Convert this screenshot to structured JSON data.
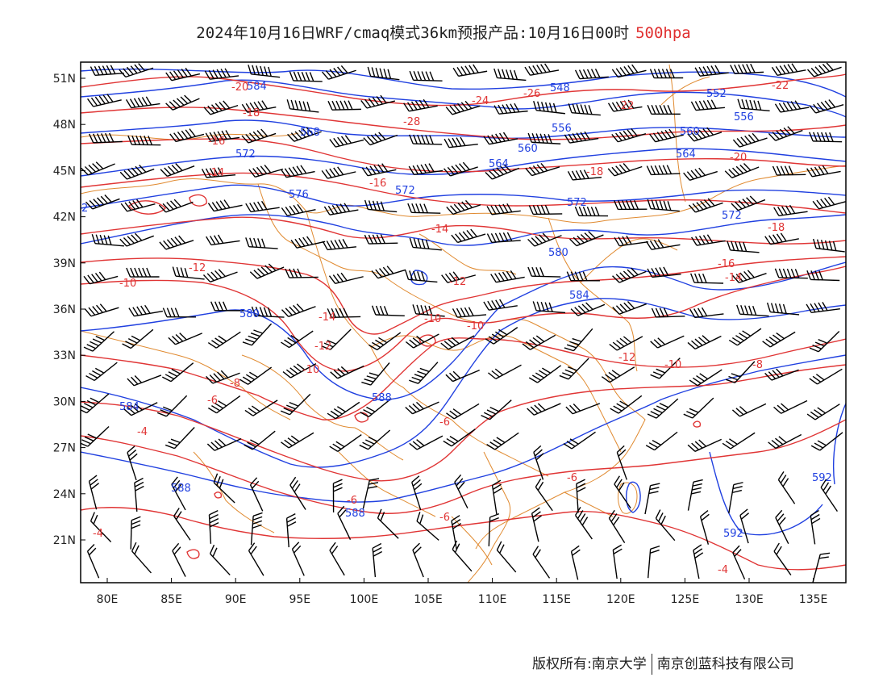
{
  "title": {
    "main": "2024年10月16日WRF/cmaq模式36km预报产品:10月16日00时",
    "level": "500hpa"
  },
  "axes": {
    "lat_labels": [
      "51N",
      "48N",
      "45N",
      "42N",
      "39N",
      "36N",
      "33N",
      "30N",
      "27N",
      "24N",
      "21N"
    ],
    "lon_labels": [
      "80E",
      "85E",
      "90E",
      "95E",
      "100E",
      "105E",
      "110E",
      "115E",
      "120E",
      "125E",
      "130E",
      "135E"
    ]
  },
  "colors": {
    "geopotential": "#2040e0",
    "temperature": "#e03535",
    "border": "#e08a30",
    "wind": "#000000"
  },
  "geopotential_labels": [
    "2",
    "584",
    "548",
    "552",
    "556",
    "560",
    "564",
    "568",
    "572",
    "576",
    "580",
    "584",
    "588",
    "592",
    "572",
    "580",
    "584",
    "588",
    "592",
    "572",
    "560",
    "556",
    "564",
    "572",
    "576"
  ],
  "temperature_labels": [
    "-20",
    "-18",
    "-16",
    "-14",
    "-12",
    "-10",
    "-8",
    "-6",
    "-4",
    "-22",
    "-24",
    "-26",
    "-28",
    "-18",
    "-16",
    "-14",
    "-12",
    "-10",
    "-8",
    "-6",
    "-4",
    "-22",
    "-20",
    "-16",
    "-14",
    "-18",
    "-12",
    "-10",
    "-8",
    "-6",
    "-4"
  ],
  "footer": {
    "copyright": "版权所有:南京大学",
    "company": "南京创蓝科技有限公司"
  }
}
